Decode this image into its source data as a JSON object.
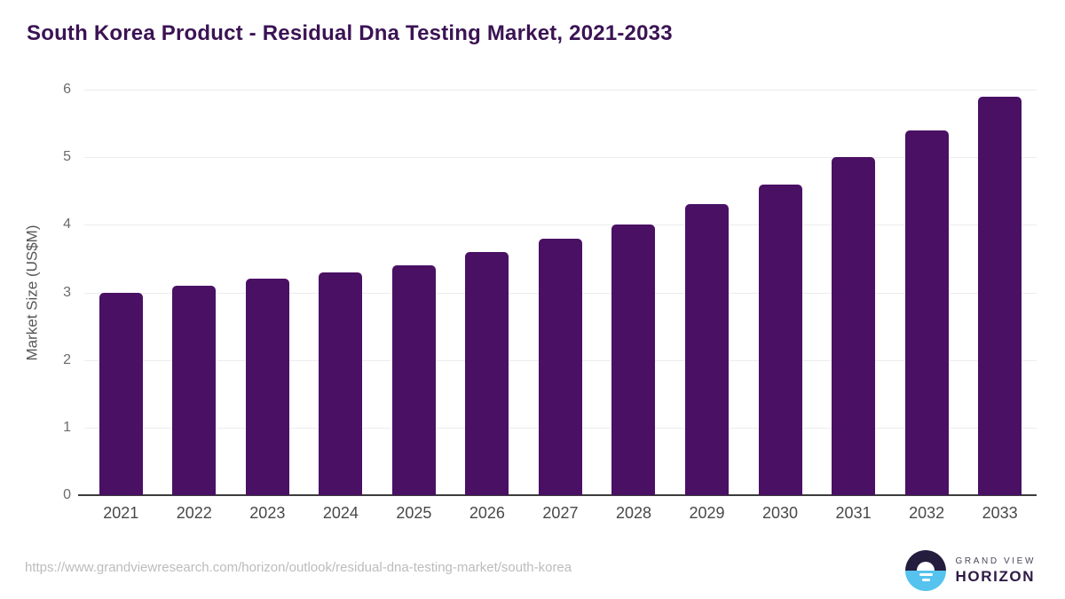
{
  "title": "South Korea Product - Residual Dna Testing Market, 2021-2033",
  "chart_data": {
    "type": "bar",
    "title": "South Korea Product - Residual Dna Testing Market, 2021-2033",
    "categories": [
      "2021",
      "2022",
      "2023",
      "2024",
      "2025",
      "2026",
      "2027",
      "2028",
      "2029",
      "2030",
      "2031",
      "2032",
      "2033"
    ],
    "values": [
      3.0,
      3.1,
      3.2,
      3.3,
      3.4,
      3.6,
      3.8,
      4.0,
      4.3,
      4.6,
      5.0,
      5.4,
      5.9
    ],
    "xlabel": "",
    "ylabel": "Market Size (US$M)",
    "ylim": [
      0,
      6
    ],
    "yticks": [
      0,
      1,
      2,
      3,
      4,
      5,
      6
    ],
    "grid": true,
    "legend_position": "none",
    "bar_color": "#4a1064"
  },
  "colors": {
    "title_text": "#3b1354",
    "bar": "#4a1064",
    "gridline": "#ececec",
    "axis_line": "#3c3c3c",
    "tick_text": "#6b6b6b",
    "category_text": "#484848",
    "url_text": "#bcbcbc",
    "logo_dark": "#241d3d",
    "logo_blue": "#55c3ee"
  },
  "footer": {
    "source_url": "https://www.grandviewresearch.com/horizon/outlook/residual-dna-testing-market/south-korea",
    "logo": {
      "line1": "GRAND VIEW",
      "line2": "HORIZON"
    }
  }
}
